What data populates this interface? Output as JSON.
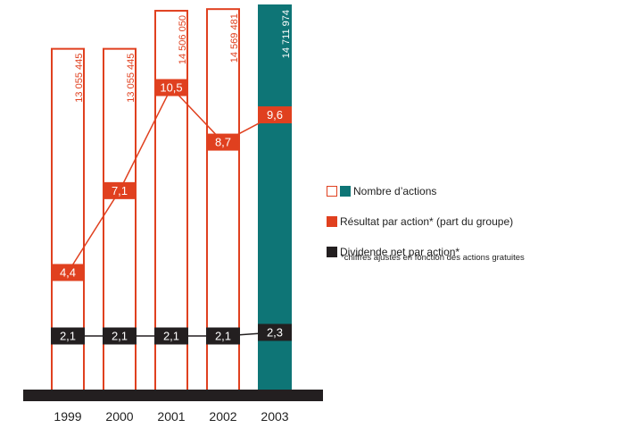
{
  "chart_data": {
    "type": "bar",
    "categories": [
      "1999",
      "2000",
      "2001",
      "2002",
      "2003"
    ],
    "series": [
      {
        "name": "Nombre d’actions",
        "values": [
          13055445,
          13055445,
          14506050,
          14569481,
          14711974
        ],
        "labels": [
          "13 055 445",
          "13 055 445",
          "14 506 050",
          "14 569 481",
          "14 711 974"
        ]
      },
      {
        "name": "Résultat par action* (part du groupe)",
        "values": [
          4.4,
          7.1,
          10.5,
          8.7,
          9.6
        ],
        "labels": [
          "4,4",
          "7,1",
          "10,5",
          "8,7",
          "9,6"
        ]
      },
      {
        "name": "Dividende net par action*",
        "values": [
          2.1,
          2.1,
          2.1,
          2.1,
          2.3
        ],
        "labels": [
          "2,1",
          "2,1",
          "2,1",
          "2,1",
          "2,3"
        ]
      }
    ],
    "highlight_category": "2003",
    "footnote": "*chiffres ajustés en fonction des actions gratuites",
    "legend_position": "right",
    "colors": {
      "bar_outline": "#e0401f",
      "highlight": "#0e7576",
      "result": "#e0401f",
      "dividend": "#231f20",
      "baseline": "#231f20"
    }
  },
  "legend": {
    "shares_label": "Nombre d’actions",
    "result_label": "Résultat par action* (part du groupe)",
    "dividend_label": "Dividende net par action*",
    "footnote": "*chiffres ajustés en fonction des actions gratuites"
  }
}
